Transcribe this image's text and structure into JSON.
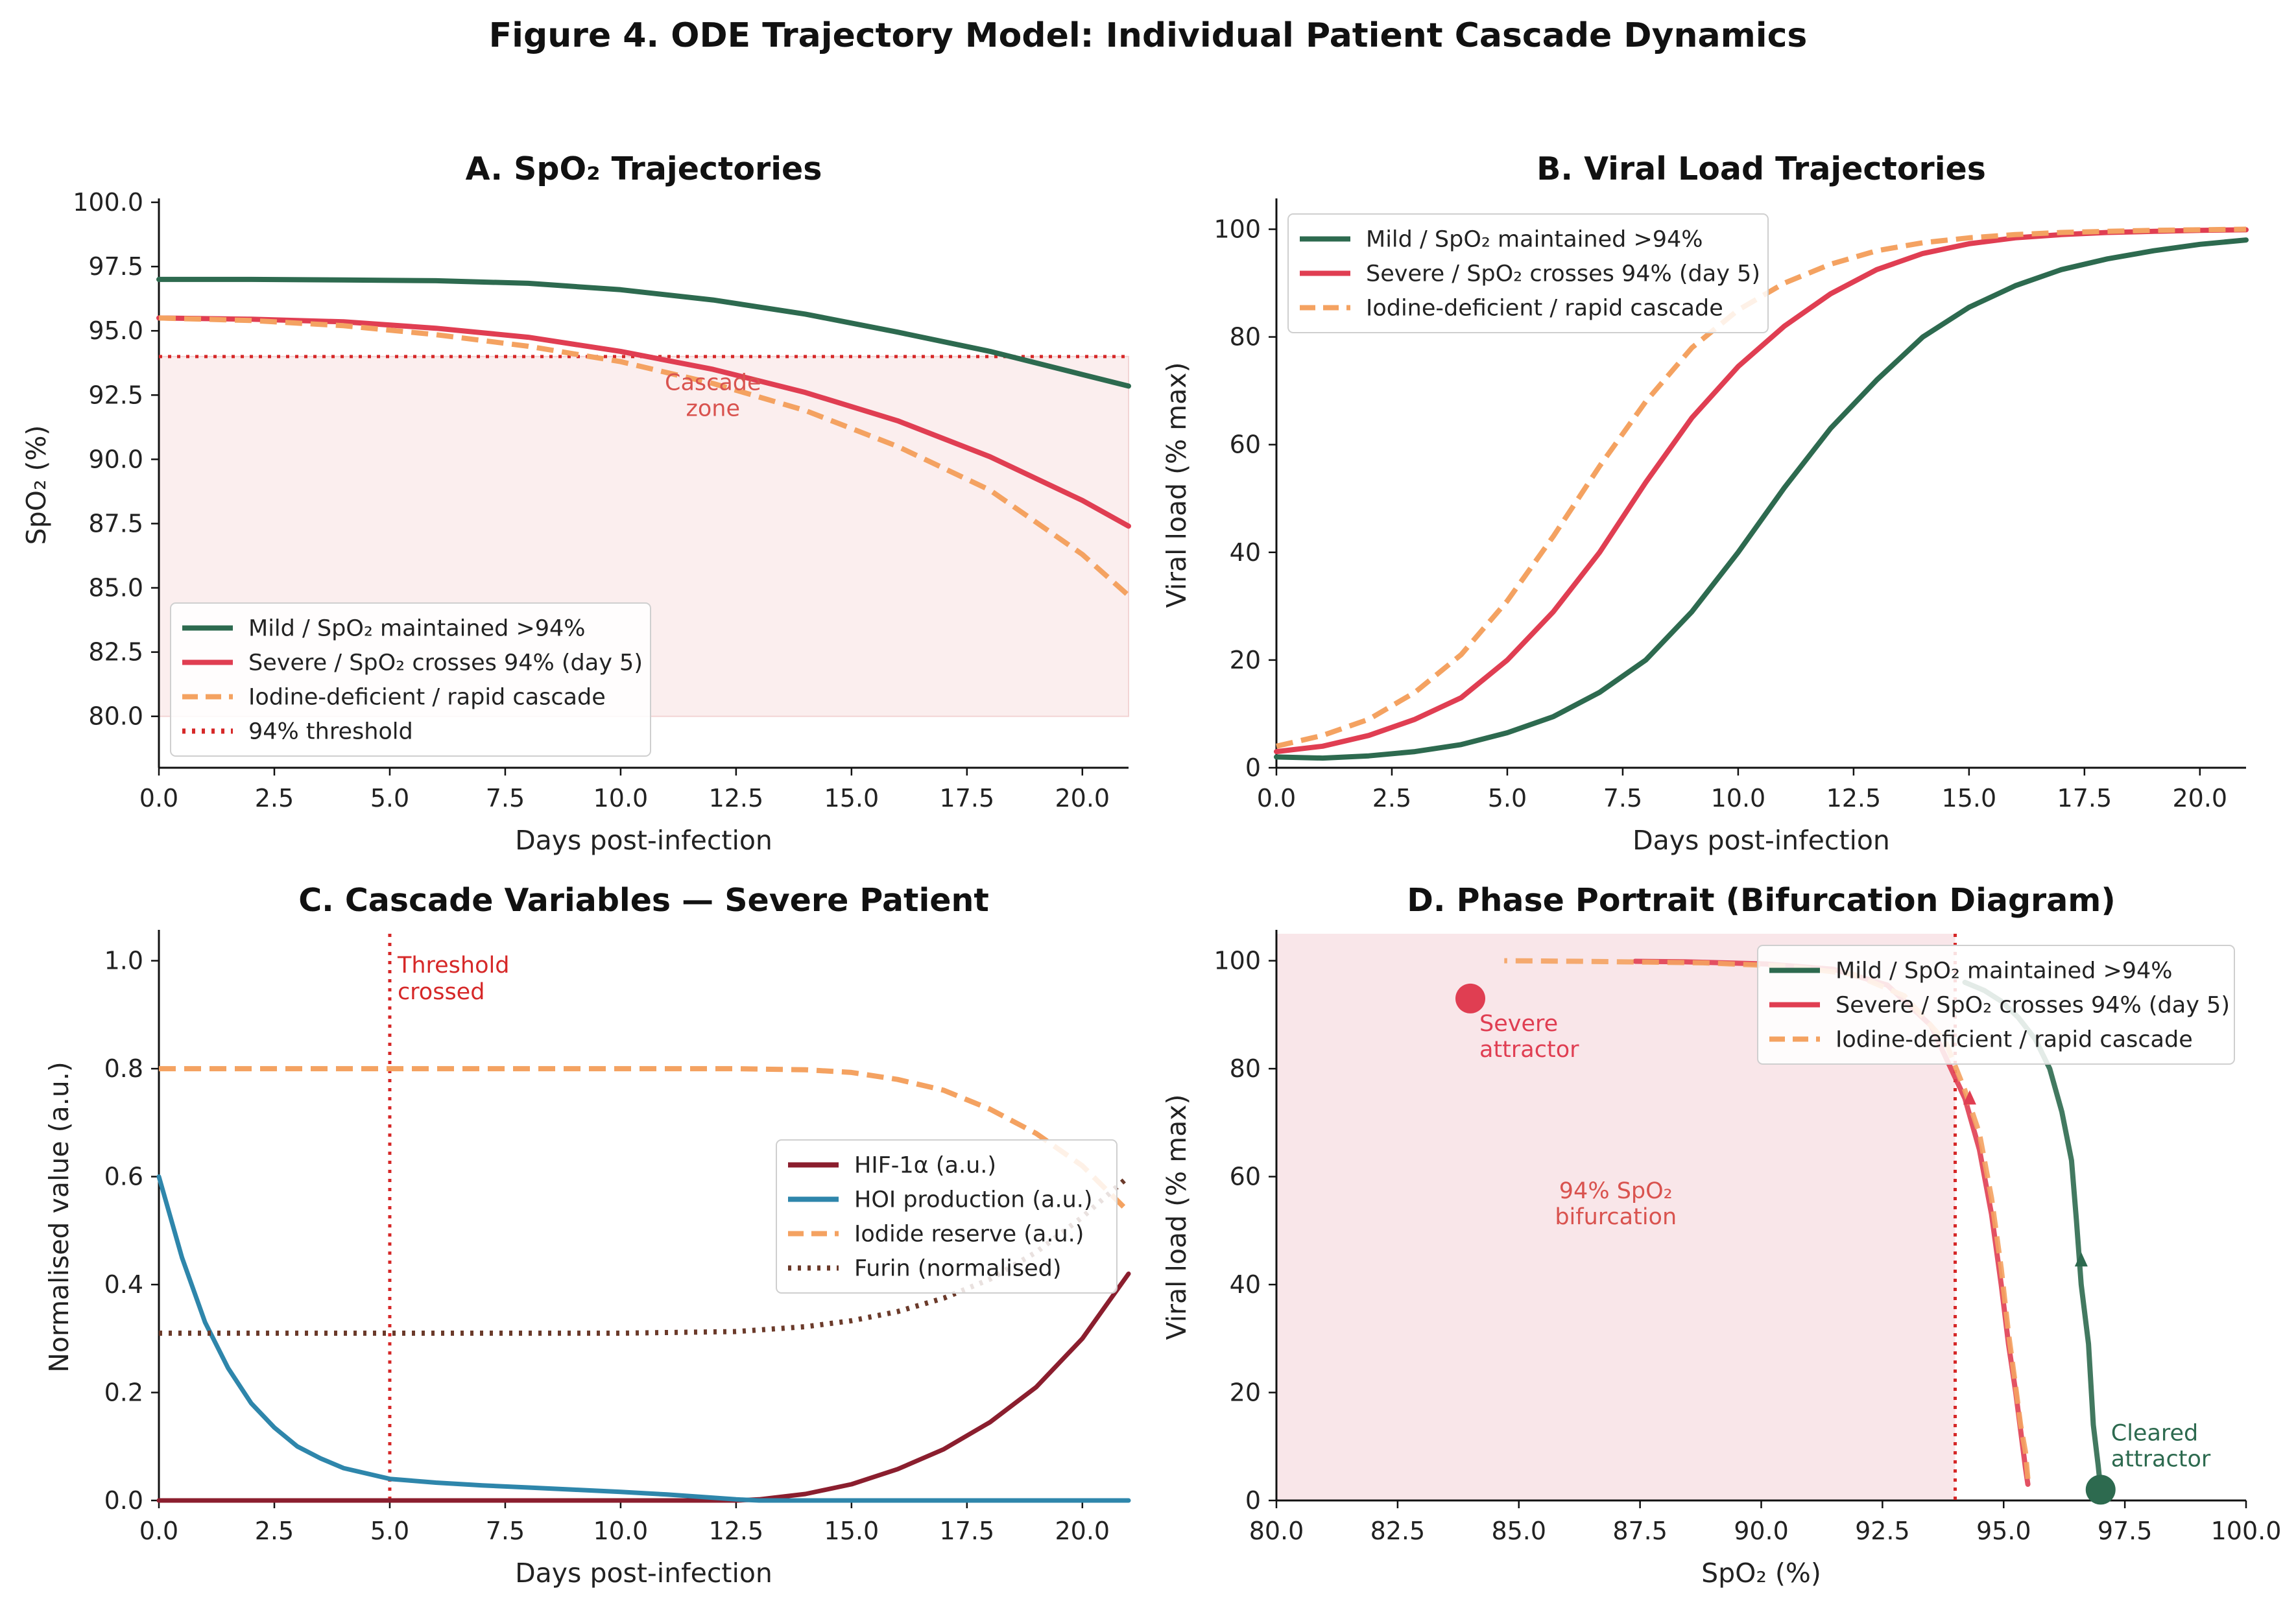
{
  "figure_title": "Figure 4.  ODE Trajectory Model: Individual Patient Cascade Dynamics",
  "colors": {
    "mild": "#2d6a4f",
    "severe": "#e03e52",
    "iodine": "#f4a261",
    "threshold": "#d62828",
    "hif": "#8b1e2e",
    "hoi": "#2e86ab",
    "furin": "#6b3a2a",
    "zone_fill": "#fbeeee",
    "zone_fill_d": "#f9e6e9"
  },
  "chart_data": [
    {
      "id": "A",
      "type": "line",
      "title": "A.  SpO₂ Trajectories",
      "xlabel": "Days post-infection",
      "ylabel": "SpO₂ (%)",
      "xlim": [
        0,
        21
      ],
      "ylim": [
        78,
        100
      ],
      "xticks": [
        0,
        2.5,
        5,
        7.5,
        10,
        12.5,
        15,
        17.5,
        20
      ],
      "xtick_labels": [
        "0.0",
        "2.5",
        "5.0",
        "7.5",
        "10.0",
        "12.5",
        "15.0",
        "17.5",
        "20.0"
      ],
      "yticks": [
        80,
        82.5,
        85,
        87.5,
        90,
        92.5,
        95,
        97.5,
        100
      ],
      "ytick_labels": [
        "80.0",
        "82.5",
        "85.0",
        "87.5",
        "90.0",
        "92.5",
        "95.0",
        "97.5",
        "100.0"
      ],
      "shaded_region": {
        "x": [
          0,
          21
        ],
        "y": [
          80,
          94
        ]
      },
      "annotation": {
        "text_line1": "Cascade",
        "text_line2": "zone",
        "x": 12.0,
        "y": 92.7
      },
      "threshold": {
        "y": 94,
        "label": "94% threshold"
      },
      "legend_position": "lower-left",
      "series": [
        {
          "name": "Mild / SpO₂ maintained >94%",
          "style": "solid",
          "color_key": "mild",
          "x": [
            0,
            2,
            4,
            6,
            8,
            10,
            12,
            14,
            16,
            18,
            20,
            21
          ],
          "y": [
            97.0,
            97.0,
            96.98,
            96.95,
            96.85,
            96.6,
            96.2,
            95.65,
            94.95,
            94.2,
            93.3,
            92.85
          ]
        },
        {
          "name": "Severe / SpO₂ crosses 94% (day 5)",
          "style": "solid",
          "color_key": "severe",
          "x": [
            0,
            2,
            4,
            6,
            8,
            10,
            12,
            14,
            16,
            18,
            20,
            21
          ],
          "y": [
            95.5,
            95.45,
            95.35,
            95.1,
            94.75,
            94.2,
            93.5,
            92.6,
            91.5,
            90.1,
            88.4,
            87.4
          ]
        },
        {
          "name": "Iodine-deficient / rapid cascade",
          "style": "dashed",
          "color_key": "iodine",
          "x": [
            0,
            2,
            4,
            6,
            8,
            10,
            12,
            14,
            16,
            18,
            20,
            21
          ],
          "y": [
            95.5,
            95.4,
            95.2,
            94.85,
            94.4,
            93.8,
            92.95,
            91.9,
            90.5,
            88.8,
            86.3,
            84.7
          ]
        }
      ]
    },
    {
      "id": "B",
      "type": "line",
      "title": "B.  Viral Load Trajectories",
      "xlabel": "Days post-infection",
      "ylabel": "Viral load (% max)",
      "xlim": [
        0,
        21
      ],
      "ylim": [
        0,
        105
      ],
      "xticks": [
        0,
        2.5,
        5,
        7.5,
        10,
        12.5,
        15,
        17.5,
        20
      ],
      "xtick_labels": [
        "0.0",
        "2.5",
        "5.0",
        "7.5",
        "10.0",
        "12.5",
        "15.0",
        "17.5",
        "20.0"
      ],
      "yticks": [
        0,
        20,
        40,
        60,
        80,
        100
      ],
      "ytick_labels": [
        "0",
        "20",
        "40",
        "60",
        "80",
        "100"
      ],
      "legend_position": "upper-left",
      "series": [
        {
          "name": "Mild / SpO₂ maintained >94%",
          "style": "solid",
          "color_key": "mild",
          "x": [
            0,
            1,
            2,
            3,
            4,
            5,
            6,
            7,
            8,
            9,
            10,
            11,
            12,
            13,
            14,
            15,
            16,
            17,
            18,
            19,
            20,
            21
          ],
          "y": [
            2,
            1.8,
            2.2,
            3.0,
            4.3,
            6.5,
            9.5,
            14,
            20,
            29,
            40,
            52,
            63,
            72,
            80,
            85.5,
            89.5,
            92.5,
            94.5,
            96,
            97.2,
            98
          ]
        },
        {
          "name": "Severe / SpO₂ crosses 94% (day 5)",
          "style": "solid",
          "color_key": "severe",
          "x": [
            0,
            1,
            2,
            3,
            4,
            5,
            6,
            7,
            8,
            9,
            10,
            11,
            12,
            13,
            14,
            15,
            16,
            17,
            18,
            19,
            20,
            21
          ],
          "y": [
            3,
            4,
            6,
            9,
            13,
            20,
            29,
            40,
            53,
            65,
            74.5,
            82,
            88,
            92.5,
            95.5,
            97.3,
            98.4,
            99,
            99.4,
            99.6,
            99.8,
            99.9
          ]
        },
        {
          "name": "Iodine-deficient / rapid cascade",
          "style": "dashed",
          "color_key": "iodine",
          "x": [
            0,
            1,
            2,
            3,
            4,
            5,
            6,
            7,
            8,
            9,
            10,
            11,
            12,
            13,
            14,
            15,
            16,
            17,
            18,
            19,
            20,
            21
          ],
          "y": [
            4,
            6,
            9,
            14,
            21,
            31,
            43,
            56,
            68,
            78,
            85,
            90,
            93.5,
            96,
            97.5,
            98.4,
            99,
            99.4,
            99.6,
            99.8,
            99.9,
            100
          ]
        }
      ]
    },
    {
      "id": "C",
      "type": "line",
      "title": "C.  Cascade Variables — Severe Patient",
      "xlabel": "Days post-infection",
      "ylabel": "Normalised value (a.u.)",
      "xlim": [
        0,
        21
      ],
      "ylim": [
        0,
        1.05
      ],
      "xticks": [
        0,
        2.5,
        5,
        7.5,
        10,
        12.5,
        15,
        17.5,
        20
      ],
      "xtick_labels": [
        "0.0",
        "2.5",
        "5.0",
        "7.5",
        "10.0",
        "12.5",
        "15.0",
        "17.5",
        "20.0"
      ],
      "yticks": [
        0,
        0.2,
        0.4,
        0.6,
        0.8,
        1.0
      ],
      "ytick_labels": [
        "0.0",
        "0.2",
        "0.4",
        "0.6",
        "0.8",
        "1.0"
      ],
      "vline": {
        "x": 5,
        "text_line1": "Threshold",
        "text_line2": "crossed"
      },
      "legend_position": "center-right",
      "series": [
        {
          "name": "HIF-1α (a.u.)",
          "style": "solid",
          "color_key": "hif",
          "x": [
            0,
            12.5,
            13,
            14,
            15,
            16,
            17,
            18,
            19,
            20,
            21
          ],
          "y": [
            0,
            0,
            0.002,
            0.012,
            0.03,
            0.058,
            0.095,
            0.145,
            0.21,
            0.3,
            0.42
          ]
        },
        {
          "name": "HOI production (a.u.)",
          "style": "solid",
          "color_key": "hoi",
          "x": [
            0,
            0.5,
            1,
            1.5,
            2,
            2.5,
            3,
            3.5,
            4,
            5,
            6,
            7,
            8,
            9,
            10,
            11,
            12,
            12.5,
            13,
            21
          ],
          "y": [
            0.6,
            0.45,
            0.33,
            0.245,
            0.18,
            0.135,
            0.1,
            0.078,
            0.06,
            0.04,
            0.033,
            0.028,
            0.024,
            0.02,
            0.016,
            0.011,
            0.005,
            0.002,
            0,
            0
          ]
        },
        {
          "name": "Iodide reserve (a.u.)",
          "style": "dashed",
          "color_key": "iodine",
          "x": [
            0,
            5,
            10,
            12.5,
            14,
            15,
            16,
            17,
            18,
            19,
            20,
            21
          ],
          "y": [
            0.8,
            0.8,
            0.8,
            0.8,
            0.798,
            0.793,
            0.78,
            0.76,
            0.725,
            0.68,
            0.62,
            0.535
          ]
        },
        {
          "name": "Furin (normalised)",
          "style": "dotted",
          "color_key": "furin",
          "x": [
            0,
            5,
            10,
            12.5,
            14,
            15,
            16,
            17,
            18,
            19,
            20,
            21
          ],
          "y": [
            0.31,
            0.31,
            0.31,
            0.313,
            0.322,
            0.333,
            0.35,
            0.375,
            0.41,
            0.46,
            0.525,
            0.6
          ]
        }
      ]
    },
    {
      "id": "D",
      "type": "line",
      "title": "D.  Phase Portrait (Bifurcation Diagram)",
      "xlabel": "SpO₂ (%)",
      "ylabel": "Viral load (% max)",
      "xlim": [
        80,
        100
      ],
      "ylim": [
        0,
        105
      ],
      "xticks": [
        80,
        82.5,
        85,
        87.5,
        90,
        92.5,
        95,
        97.5,
        100
      ],
      "xtick_labels": [
        "80.0",
        "82.5",
        "85.0",
        "87.5",
        "90.0",
        "92.5",
        "95.0",
        "97.5",
        "100.0"
      ],
      "yticks": [
        0,
        20,
        40,
        60,
        80,
        100
      ],
      "ytick_labels": [
        "0",
        "20",
        "40",
        "60",
        "80",
        "100"
      ],
      "shaded_region": {
        "x": [
          80,
          94
        ],
        "y": [
          0,
          105
        ]
      },
      "vline": {
        "x": 94
      },
      "bifurcation_label": {
        "line1": "94% SpO₂",
        "line2": "bifurcation",
        "x": 87.0,
        "y": 56
      },
      "attractors": [
        {
          "name_line1": "Severe",
          "name_line2": "attractor",
          "x": 84.0,
          "y": 93,
          "color_key": "severe"
        },
        {
          "name_line1": "Cleared",
          "name_line2": "attractor",
          "x": 97.0,
          "y": 2,
          "color_key": "mild"
        }
      ],
      "legend_position": "upper-right",
      "series": [
        {
          "name": "Mild / SpO₂ maintained >94%",
          "style": "solid",
          "color_key": "mild",
          "x": [
            97.0,
            96.95,
            96.85,
            96.75,
            96.6,
            96.5,
            96.4,
            96.2,
            95.95,
            95.65,
            95.3,
            94.95,
            94.6,
            94.2
          ],
          "y": [
            2,
            6.5,
            14,
            29,
            40,
            52,
            63,
            72,
            80,
            85.5,
            89.5,
            92.5,
            94.5,
            96
          ]
        },
        {
          "name": "Severe / SpO₂ crosses 94% (day 5)",
          "style": "solid",
          "color_key": "severe",
          "x": [
            95.5,
            95.45,
            95.35,
            95.25,
            95.1,
            94.95,
            94.75,
            94.5,
            94.2,
            93.5,
            92.6,
            91.5,
            90.1,
            88.4,
            87.4
          ],
          "y": [
            3,
            6,
            13,
            20,
            29,
            40,
            53,
            65,
            74.5,
            88,
            95.5,
            98.4,
            99.4,
            99.8,
            99.9
          ]
        },
        {
          "name": "Iodine-deficient / rapid cascade",
          "style": "dashed",
          "color_key": "iodine",
          "x": [
            95.5,
            95.45,
            95.35,
            95.25,
            95.1,
            94.95,
            94.75,
            94.5,
            94.2,
            93.8,
            92.95,
            91.9,
            90.5,
            88.8,
            86.3,
            84.7
          ],
          "y": [
            4,
            9,
            14,
            21,
            31,
            43,
            56,
            68,
            76,
            85,
            93.5,
            97.5,
            99,
            99.6,
            99.9,
            100
          ]
        }
      ]
    }
  ]
}
